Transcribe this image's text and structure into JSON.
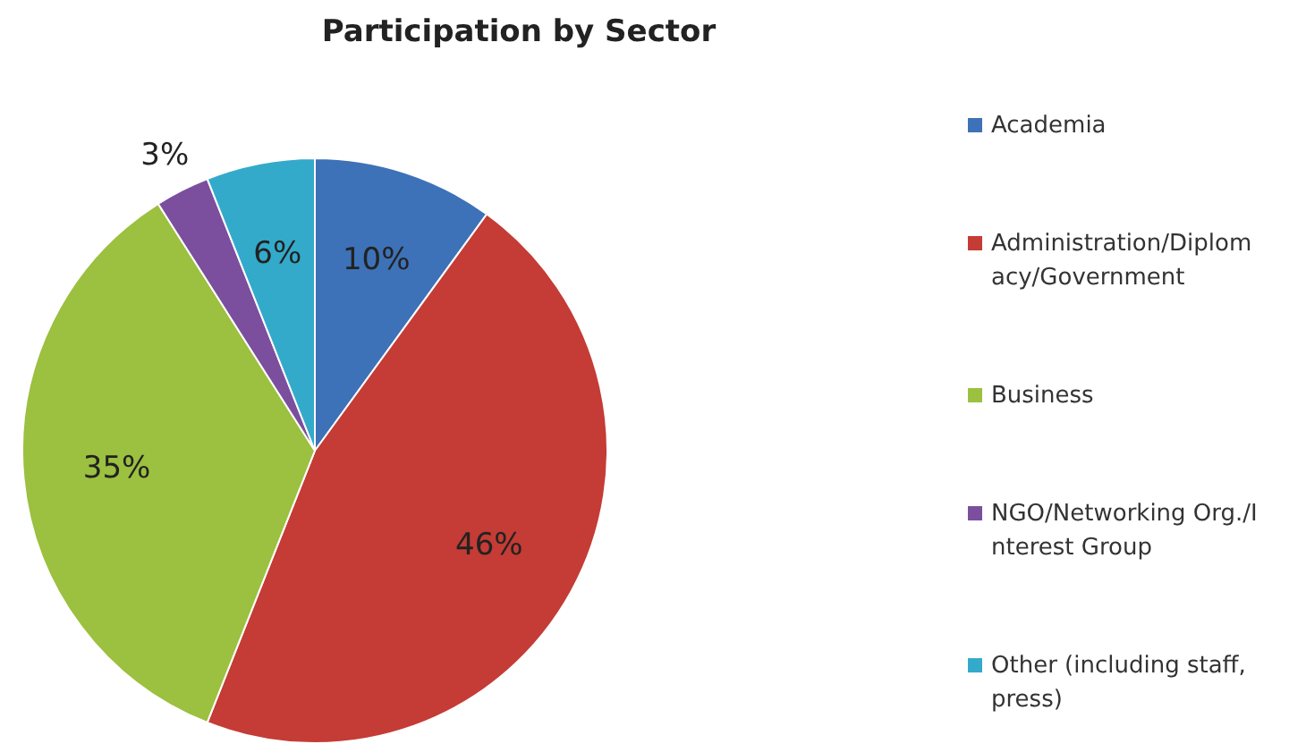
{
  "chart_data": {
    "type": "pie",
    "title": "Participation by Sector",
    "categories": [
      "Academia",
      "Administration/Diplomacy/Government",
      "Business",
      "NGO/Networking Org./Interest Group",
      "Other (including staff,press)"
    ],
    "values": [
      10,
      46,
      35,
      3,
      6
    ],
    "colors": [
      "#3d72b8",
      "#c43c35",
      "#9cc03f",
      "#7b4f9e",
      "#34aacb"
    ],
    "value_labels": [
      "10%",
      "46%",
      "35%",
      "3%",
      "6%"
    ],
    "legend": "right"
  }
}
